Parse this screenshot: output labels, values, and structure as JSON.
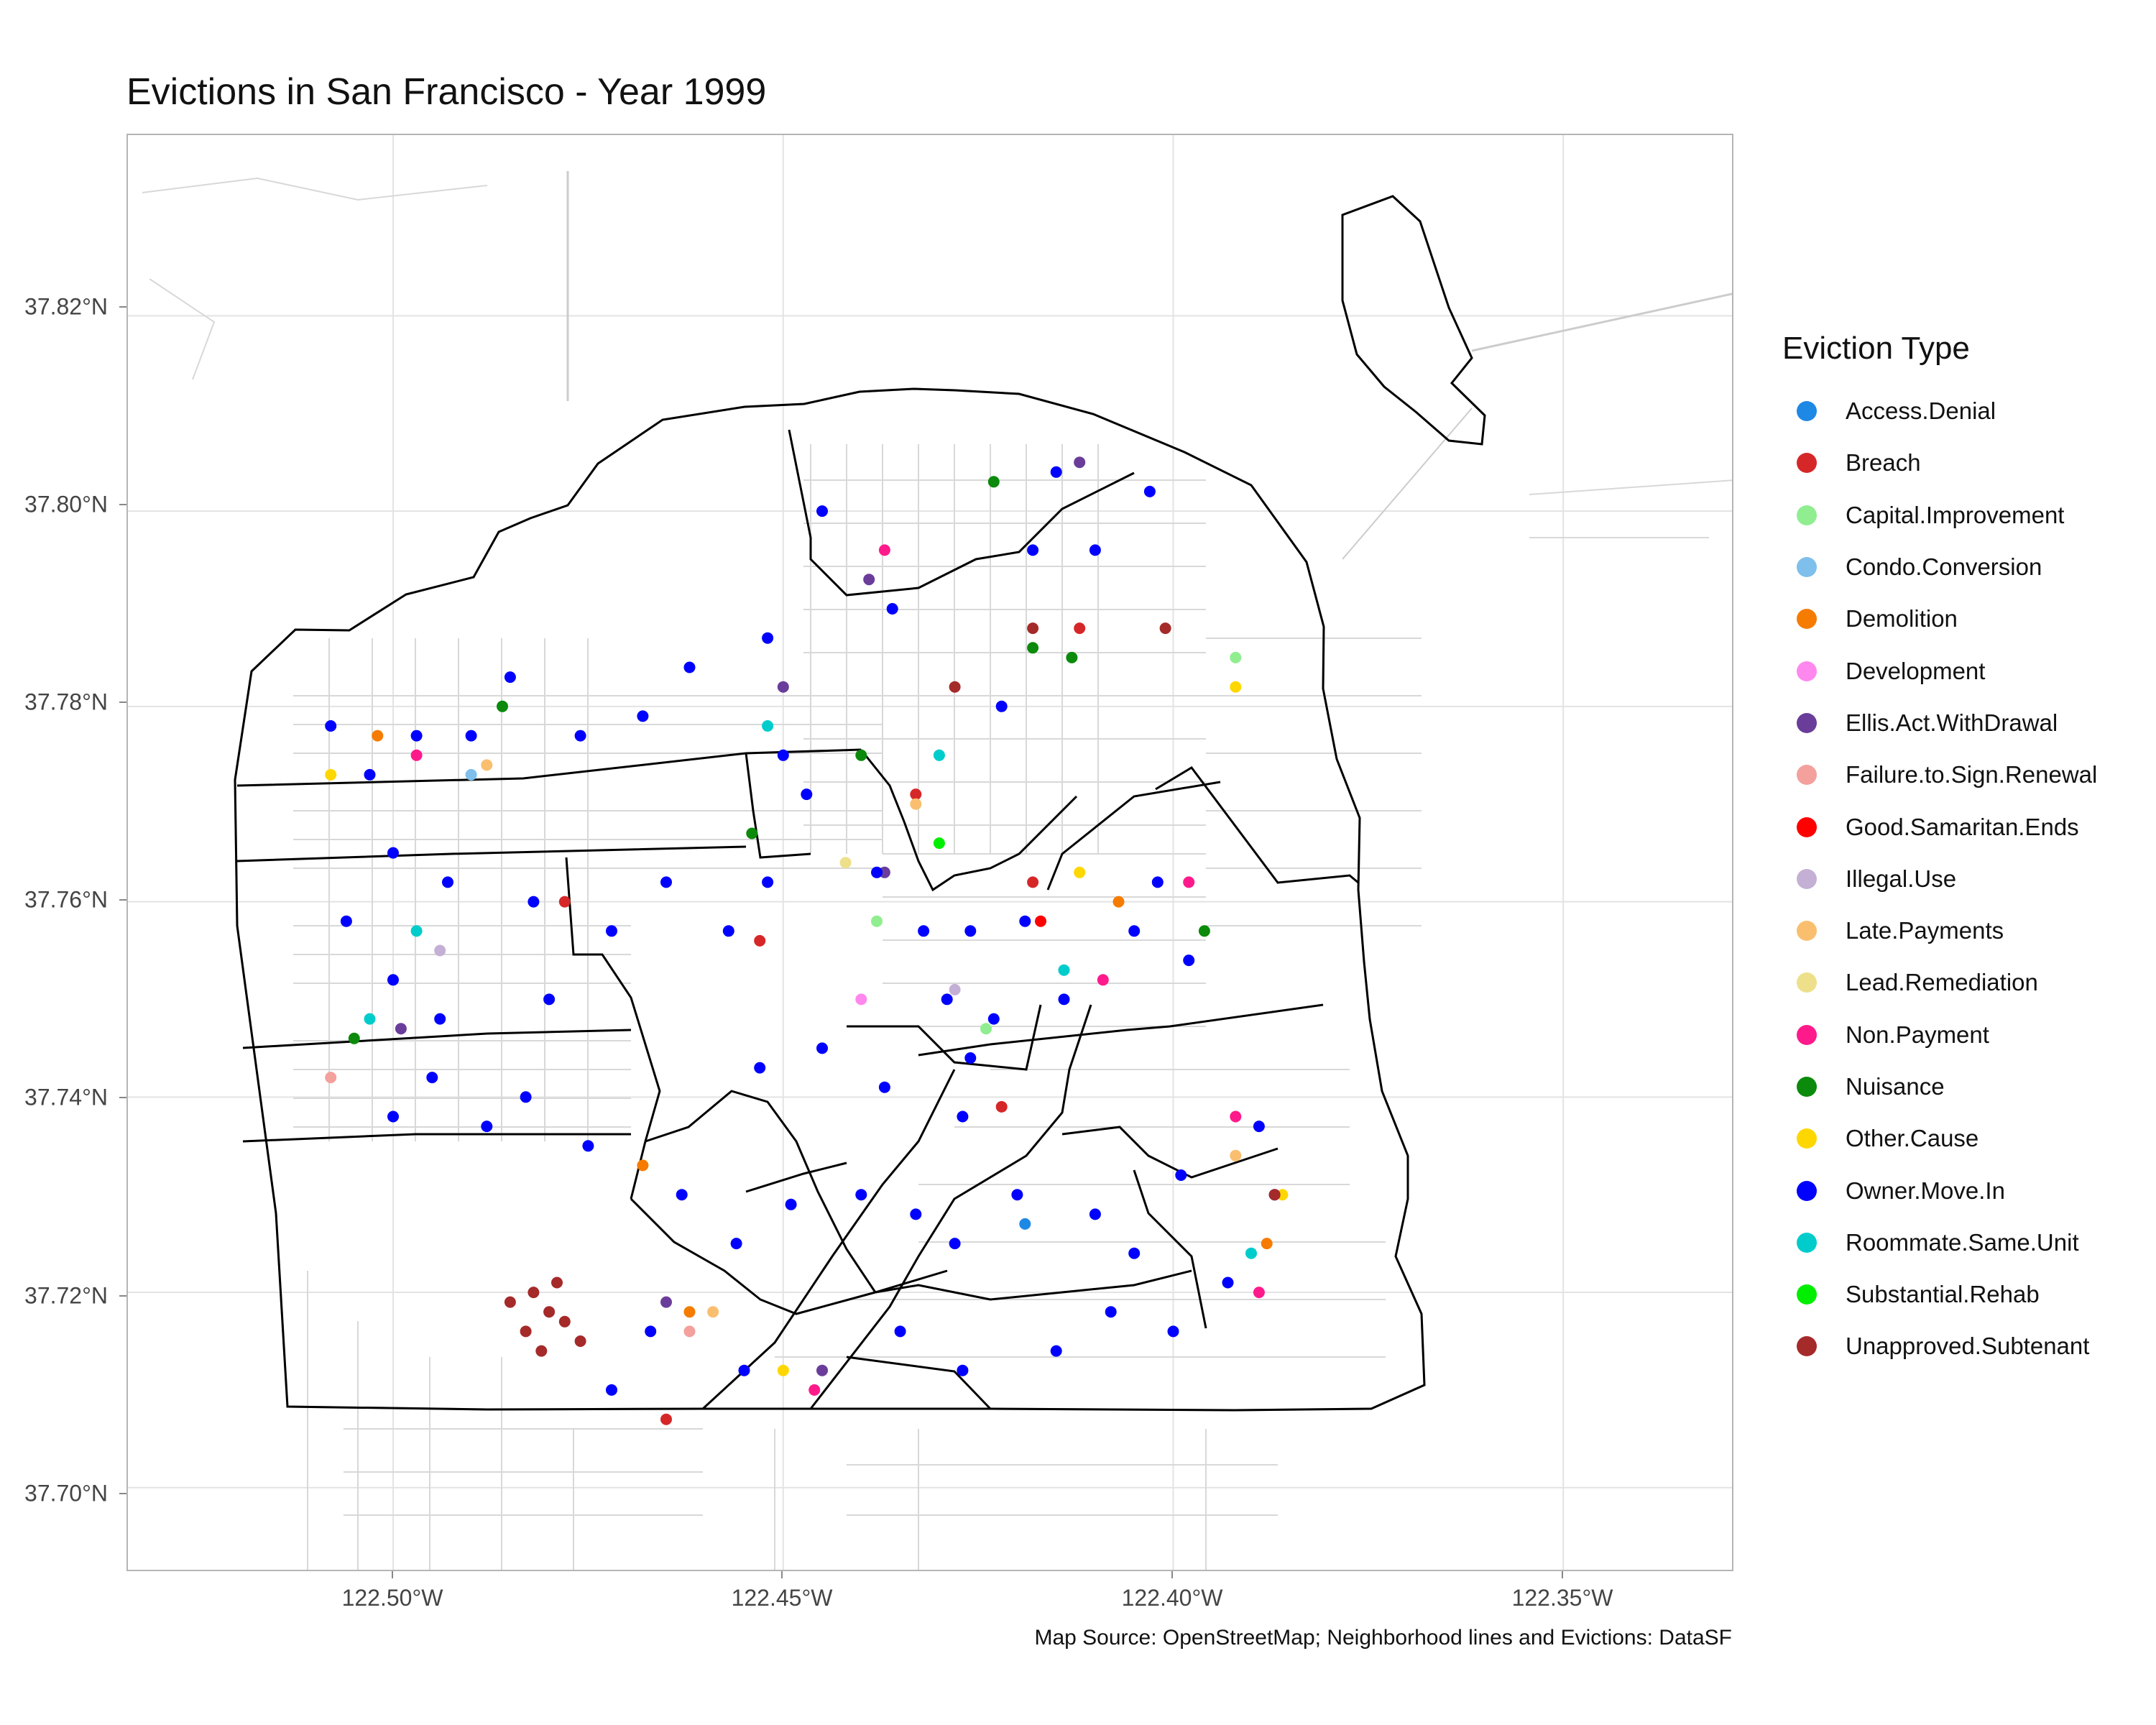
{
  "chart_data": {
    "type": "scatter",
    "title": "Evictions in San Francisco - Year 1999",
    "caption": "Map Source: OpenStreetMap; Neighborhood lines and Evictions: DataSF",
    "xlabel": "",
    "ylabel": "",
    "xlim": [
      -122.534,
      -122.328
    ],
    "ylim": [
      37.6913,
      37.8385
    ],
    "x_ticks": [
      "122.50°W",
      "122.45°W",
      "122.40°W",
      "122.35°W"
    ],
    "x_tick_values": [
      -122.5,
      -122.45,
      -122.4,
      -122.35
    ],
    "y_ticks": [
      "37.70°N",
      "37.72°N",
      "37.74°N",
      "37.76°N",
      "37.78°N",
      "37.80°N",
      "37.82°N"
    ],
    "y_tick_values": [
      37.7,
      37.72,
      37.74,
      37.76,
      37.78,
      37.8,
      37.82
    ],
    "grid": true,
    "legend_position": "right",
    "legend_title": "Eviction Type",
    "series": [
      {
        "name": "Access.Denial",
        "color": "#1e88e5",
        "points": [
          [
            -122.419,
            37.727
          ]
        ]
      },
      {
        "name": "Breach",
        "color": "#d62728",
        "points": [
          [
            -122.412,
            37.788
          ],
          [
            -122.418,
            37.762
          ],
          [
            -122.433,
            37.771
          ],
          [
            -122.453,
            37.756
          ],
          [
            -122.478,
            37.76
          ],
          [
            -122.465,
            37.707
          ],
          [
            -122.422,
            37.739
          ]
        ]
      },
      {
        "name": "Capital.Improvement",
        "color": "#90ee90",
        "points": [
          [
            -122.392,
            37.785
          ],
          [
            -122.438,
            37.758
          ],
          [
            -122.424,
            37.747
          ]
        ]
      },
      {
        "name": "Condo.Conversion",
        "color": "#7fbfeb",
        "points": [
          [
            -122.49,
            37.773
          ]
        ]
      },
      {
        "name": "Demolition",
        "color": "#f57c00",
        "points": [
          [
            -122.468,
            37.733
          ],
          [
            -122.407,
            37.76
          ],
          [
            -122.502,
            37.777
          ],
          [
            -122.462,
            37.718
          ],
          [
            -122.388,
            37.725
          ]
        ]
      },
      {
        "name": "Development",
        "color": "#ff88ee",
        "points": [
          [
            -122.44,
            37.75
          ]
        ]
      },
      {
        "name": "Ellis.Act.WithDrawal",
        "color": "#6a3d9a",
        "points": [
          [
            -122.45,
            37.782
          ],
          [
            -122.439,
            37.793
          ],
          [
            -122.412,
            37.805
          ],
          [
            -122.437,
            37.763
          ],
          [
            -122.465,
            37.719
          ],
          [
            -122.445,
            37.712
          ],
          [
            -122.499,
            37.747
          ]
        ]
      },
      {
        "name": "Failure.to.Sign.Renewal",
        "color": "#f4a09c",
        "points": [
          [
            -122.508,
            37.742
          ],
          [
            -122.462,
            37.716
          ]
        ]
      },
      {
        "name": "Good.Samaritan.Ends",
        "color": "#ff0000",
        "points": [
          [
            -122.417,
            37.758
          ]
        ]
      },
      {
        "name": "Illegal.Use",
        "color": "#c5b0d5",
        "points": [
          [
            -122.494,
            37.755
          ],
          [
            -122.428,
            37.751
          ]
        ]
      },
      {
        "name": "Late.Payments",
        "color": "#f9bf6f",
        "points": [
          [
            -122.433,
            37.77
          ],
          [
            -122.392,
            37.734
          ],
          [
            -122.459,
            37.718
          ],
          [
            -122.488,
            37.774
          ]
        ]
      },
      {
        "name": "Lead.Remediation",
        "color": "#eee08a",
        "points": [
          [
            -122.442,
            37.764
          ]
        ]
      },
      {
        "name": "Non.Payment",
        "color": "#ff1a8c",
        "points": [
          [
            -122.409,
            37.752
          ],
          [
            -122.398,
            37.762
          ],
          [
            -122.392,
            37.738
          ],
          [
            -122.437,
            37.796
          ],
          [
            -122.497,
            37.775
          ],
          [
            -122.389,
            37.72
          ],
          [
            -122.446,
            37.71
          ]
        ]
      },
      {
        "name": "Nuisance",
        "color": "#0b8a0b",
        "points": [
          [
            -122.413,
            37.785
          ],
          [
            -122.418,
            37.786
          ],
          [
            -122.423,
            37.803
          ],
          [
            -122.396,
            37.757
          ],
          [
            -122.44,
            37.775
          ],
          [
            -122.454,
            37.767
          ],
          [
            -122.486,
            37.78
          ],
          [
            -122.505,
            37.746
          ]
        ]
      },
      {
        "name": "Other.Cause",
        "color": "#ffd700",
        "points": [
          [
            -122.392,
            37.782
          ],
          [
            -122.412,
            37.763
          ],
          [
            -122.45,
            37.712
          ],
          [
            -122.508,
            37.773
          ],
          [
            -122.386,
            37.73
          ]
        ]
      },
      {
        "name": "Owner.Move.In",
        "color": "#0000ff",
        "points": [
          [
            -122.445,
            37.8
          ],
          [
            -122.436,
            37.79
          ],
          [
            -122.45,
            37.775
          ],
          [
            -122.447,
            37.771
          ],
          [
            -122.438,
            37.763
          ],
          [
            -122.432,
            37.757
          ],
          [
            -122.426,
            37.757
          ],
          [
            -122.429,
            37.75
          ],
          [
            -122.423,
            37.748
          ],
          [
            -122.426,
            37.744
          ],
          [
            -122.427,
            37.738
          ],
          [
            -122.419,
            37.758
          ],
          [
            -122.414,
            37.75
          ],
          [
            -122.422,
            37.78
          ],
          [
            -122.41,
            37.796
          ],
          [
            -122.403,
            37.802
          ],
          [
            -122.418,
            37.796
          ],
          [
            -122.415,
            37.804
          ],
          [
            -122.452,
            37.787
          ],
          [
            -122.462,
            37.784
          ],
          [
            -122.468,
            37.779
          ],
          [
            -122.476,
            37.777
          ],
          [
            -122.485,
            37.783
          ],
          [
            -122.49,
            37.777
          ],
          [
            -122.497,
            37.777
          ],
          [
            -122.503,
            37.773
          ],
          [
            -122.508,
            37.778
          ],
          [
            -122.5,
            37.765
          ],
          [
            -122.493,
            37.762
          ],
          [
            -122.482,
            37.76
          ],
          [
            -122.472,
            37.757
          ],
          [
            -122.465,
            37.762
          ],
          [
            -122.506,
            37.758
          ],
          [
            -122.5,
            37.752
          ],
          [
            -122.494,
            37.748
          ],
          [
            -122.48,
            37.75
          ],
          [
            -122.483,
            37.74
          ],
          [
            -122.495,
            37.742
          ],
          [
            -122.5,
            37.738
          ],
          [
            -122.488,
            37.737
          ],
          [
            -122.475,
            37.735
          ],
          [
            -122.463,
            37.73
          ],
          [
            -122.456,
            37.725
          ],
          [
            -122.449,
            37.729
          ],
          [
            -122.44,
            37.73
          ],
          [
            -122.433,
            37.728
          ],
          [
            -122.428,
            37.725
          ],
          [
            -122.42,
            37.73
          ],
          [
            -122.41,
            37.728
          ],
          [
            -122.405,
            37.724
          ],
          [
            -122.399,
            37.732
          ],
          [
            -122.408,
            37.718
          ],
          [
            -122.415,
            37.714
          ],
          [
            -122.4,
            37.716
          ],
          [
            -122.393,
            37.721
          ],
          [
            -122.387,
            37.73
          ],
          [
            -122.389,
            37.737
          ],
          [
            -122.453,
            37.743
          ],
          [
            -122.445,
            37.745
          ],
          [
            -122.437,
            37.741
          ],
          [
            -122.467,
            37.716
          ],
          [
            -122.472,
            37.71
          ],
          [
            -122.455,
            37.712
          ],
          [
            -122.435,
            37.716
          ],
          [
            -122.427,
            37.712
          ],
          [
            -122.457,
            37.757
          ],
          [
            -122.452,
            37.762
          ],
          [
            -122.402,
            37.762
          ],
          [
            -122.405,
            37.757
          ],
          [
            -122.398,
            37.754
          ]
        ]
      },
      {
        "name": "Roommate.Same.Unit",
        "color": "#00cccc",
        "points": [
          [
            -122.452,
            37.778
          ],
          [
            -122.497,
            37.757
          ],
          [
            -122.503,
            37.748
          ],
          [
            -122.39,
            37.724
          ],
          [
            -122.43,
            37.775
          ],
          [
            -122.414,
            37.753
          ]
        ]
      },
      {
        "name": "Substantial.Rehab",
        "color": "#00ee00",
        "points": [
          [
            -122.43,
            37.766
          ]
        ]
      },
      {
        "name": "Unapproved.Subtenant",
        "color": "#a52a2a",
        "points": [
          [
            -122.48,
            37.718
          ],
          [
            -122.482,
            37.72
          ],
          [
            -122.478,
            37.717
          ],
          [
            -122.485,
            37.719
          ],
          [
            -122.476,
            37.715
          ],
          [
            -122.483,
            37.716
          ],
          [
            -122.479,
            37.721
          ],
          [
            -122.481,
            37.714
          ],
          [
            -122.418,
            37.788
          ],
          [
            -122.401,
            37.788
          ],
          [
            -122.428,
            37.782
          ],
          [
            -122.387,
            37.73
          ]
        ]
      }
    ]
  }
}
